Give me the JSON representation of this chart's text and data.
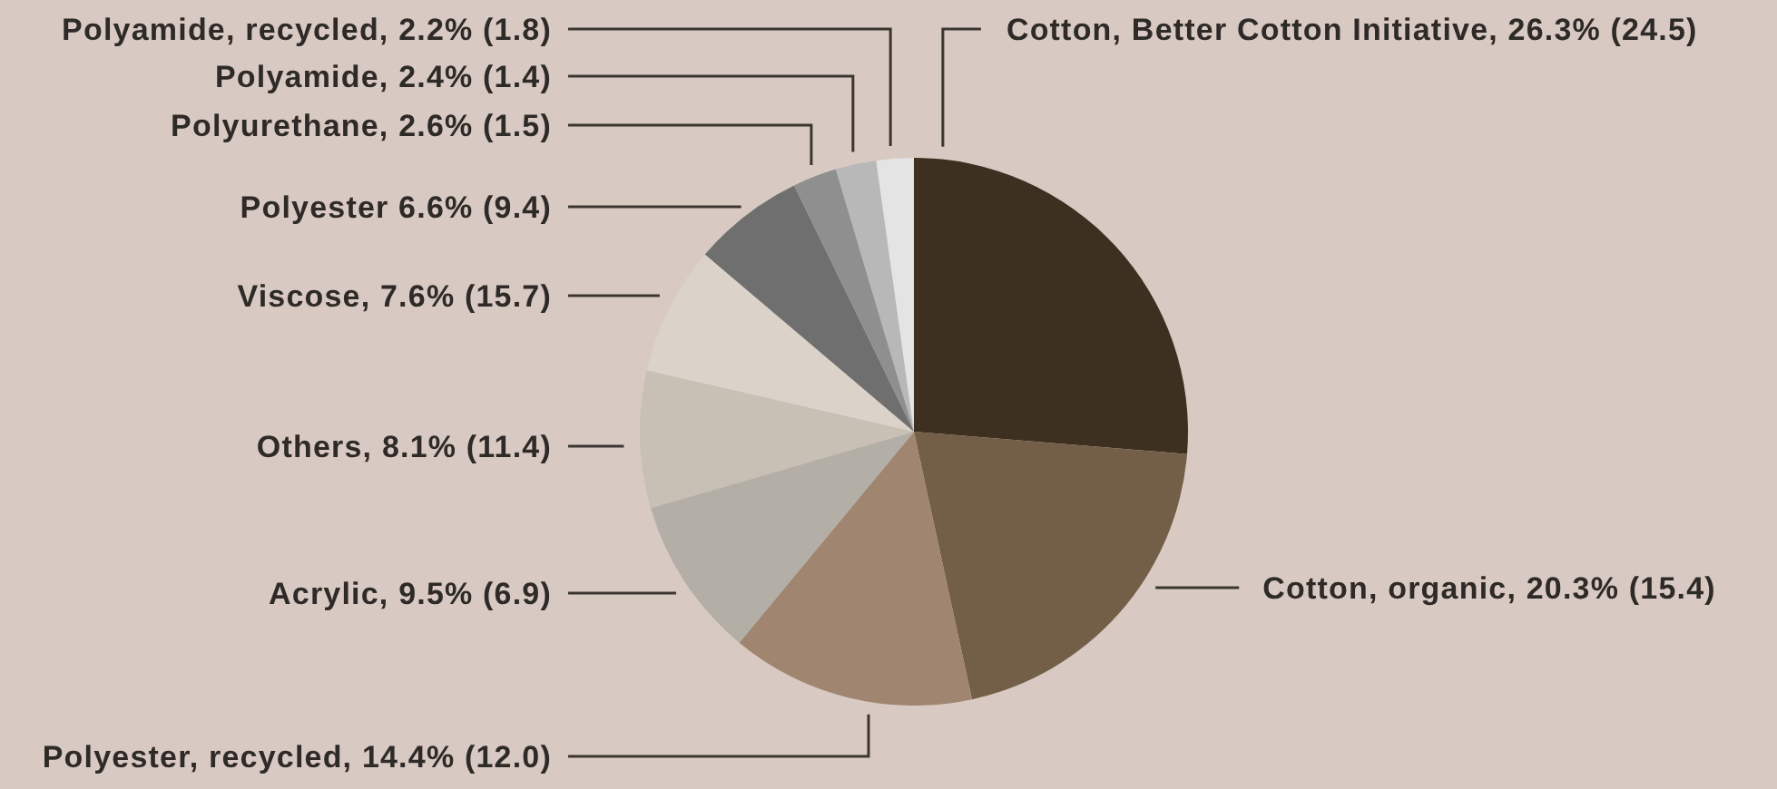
{
  "chart_data": {
    "type": "pie",
    "categories": [
      "Cotton, Better Cotton Initiative, 26.3% (24.5)",
      "Cotton, organic, 20.3% (15.4)",
      "Polyester, recycled, 14.4% (12.0)",
      "Acrylic, 9.5% (6.9)",
      "Others, 8.1% (11.4)",
      "Viscose, 7.6% (15.7)",
      "Polyester 6.6% (9.4)",
      "Polyurethane, 2.6% (1.5)",
      "Polyamide, 2.4% (1.4)",
      "Polyamide, recycled, 2.2% (1.8)"
    ],
    "values": [
      26.3,
      20.3,
      14.4,
      9.5,
      8.1,
      7.6,
      6.6,
      2.6,
      2.4,
      2.2
    ],
    "colors": [
      "#3e3020",
      "#735f48",
      "#a08671",
      "#b3afa7",
      "#c8bfb5",
      "#dbd2c9",
      "#6f6f6f",
      "#8f8f8f",
      "#b8b8b8",
      "#e4e4e4"
    ]
  }
}
